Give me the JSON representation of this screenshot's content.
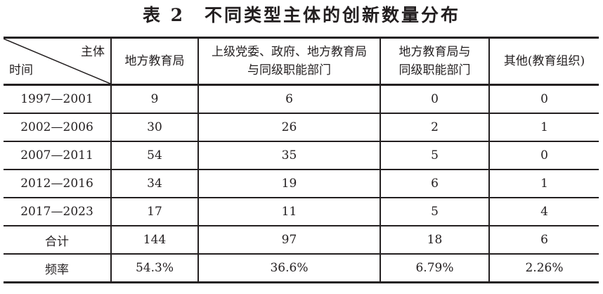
{
  "title": "表 2　不同类型主体的创新数量分布",
  "header": {
    "corner_top": "主体",
    "corner_bottom": "时间",
    "columns": [
      "地方教育局",
      "上级党委、政府、地方教育局与同级职能部门",
      "地方教育局与同级职能部门",
      "其他(教育组织)"
    ],
    "column_lines": [
      [
        "地方教育局"
      ],
      [
        "上级党委、政府、地方教育局",
        "与同级职能部门"
      ],
      [
        "地方教育局与",
        "同级职能部门"
      ],
      [
        "其他(教育组织)"
      ]
    ]
  },
  "rows": [
    {
      "label": "1997—2001",
      "values": [
        "9",
        "6",
        "0",
        "0"
      ]
    },
    {
      "label": "2002—2006",
      "values": [
        "30",
        "26",
        "2",
        "1"
      ]
    },
    {
      "label": "2007—2011",
      "values": [
        "54",
        "35",
        "5",
        "0"
      ]
    },
    {
      "label": "2012—2016",
      "values": [
        "34",
        "19",
        "6",
        "1"
      ]
    },
    {
      "label": "2017—2023",
      "values": [
        "17",
        "11",
        "5",
        "4"
      ]
    },
    {
      "label": "合计",
      "values": [
        "144",
        "97",
        "18",
        "6"
      ]
    },
    {
      "label": "频率",
      "values": [
        "54.3%",
        "36.6%",
        "6.79%",
        "2.26%"
      ]
    }
  ]
}
